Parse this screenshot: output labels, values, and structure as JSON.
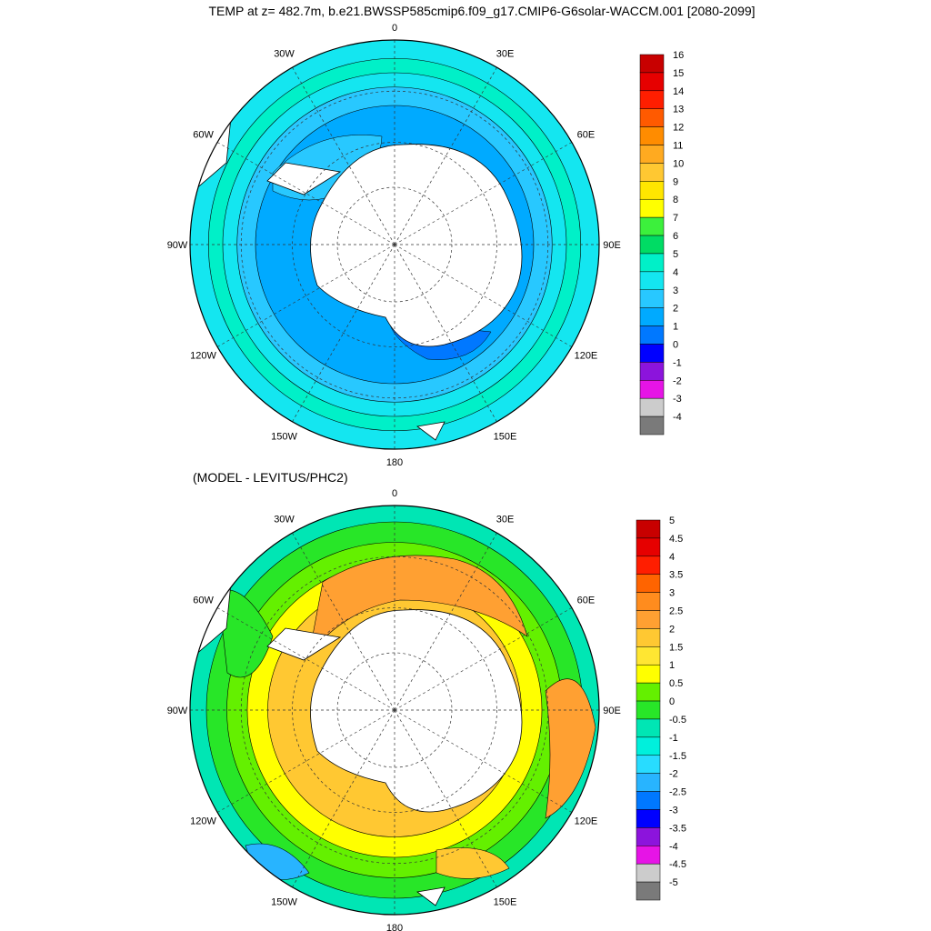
{
  "title": "TEMP at z= 482.7m, b.e21.BWSSP585cmip6.f09_g17.CMIP6-G6solar-WACCM.001 [2080-2099]",
  "diff_title": "(MODEL - LEVITUS/PHC2)",
  "lon_labels": [
    "0",
    "30E",
    "60E",
    "90E",
    "120E",
    "150E",
    "180",
    "150W",
    "120W",
    "90W",
    "60W",
    "30W"
  ],
  "colors": {
    "land": "#ffffff",
    "outline": "#000000"
  },
  "panels": [
    {
      "name": "temperature",
      "colorbar": {
        "labels": [
          "16",
          "15",
          "14",
          "13",
          "12",
          "11",
          "10",
          "9",
          "8",
          "7",
          "6",
          "5",
          "4",
          "3",
          "2",
          "1",
          "0",
          "-1",
          "-2",
          "-3",
          "-4"
        ],
        "colors": [
          "#c80000",
          "#e60000",
          "#ff1e00",
          "#ff5a00",
          "#ff8c00",
          "#ffaa20",
          "#ffc832",
          "#ffe600",
          "#ffff00",
          "#3cf03c",
          "#00dc64",
          "#00f0c8",
          "#14e6f0",
          "#28c8ff",
          "#00aaff",
          "#0078ff",
          "#0000ff",
          "#8c14dc",
          "#e614e6",
          "#cccccc",
          "#7a7a7a"
        ]
      },
      "rings": [
        {
          "r": 1.0,
          "color": "#14e6f0"
        },
        {
          "r": 0.91,
          "color": "#00f0c8"
        },
        {
          "r": 0.84,
          "color": "#14e6f0"
        },
        {
          "r": 0.77,
          "color": "#28c8ff"
        },
        {
          "r": 0.68,
          "color": "#00aaff"
        }
      ]
    },
    {
      "name": "difference",
      "colorbar": {
        "labels": [
          "5",
          "4.5",
          "4",
          "3.5",
          "3",
          "2.5",
          "2",
          "1.5",
          "1",
          "0.5",
          "0",
          "-0.5",
          "-1",
          "-1.5",
          "-2",
          "-2.5",
          "-3",
          "-3.5",
          "-4",
          "-4.5",
          "-5"
        ],
        "colors": [
          "#c80000",
          "#e60000",
          "#ff1e00",
          "#ff6400",
          "#ff8c1e",
          "#ffa032",
          "#ffc832",
          "#ffe632",
          "#ffff00",
          "#64f000",
          "#28e628",
          "#00e6b4",
          "#00f0dc",
          "#28dcff",
          "#28b4ff",
          "#0078ff",
          "#0000ff",
          "#8c14dc",
          "#e614e6",
          "#cccccc",
          "#7a7a7a"
        ]
      },
      "rings": [
        {
          "r": 1.0,
          "color": "#00e6b4"
        },
        {
          "r": 0.92,
          "color": "#28e628"
        },
        {
          "r": 0.82,
          "color": "#64f000"
        },
        {
          "r": 0.72,
          "color": "#ffff00"
        },
        {
          "r": 0.62,
          "color": "#ffc832"
        }
      ]
    }
  ]
}
